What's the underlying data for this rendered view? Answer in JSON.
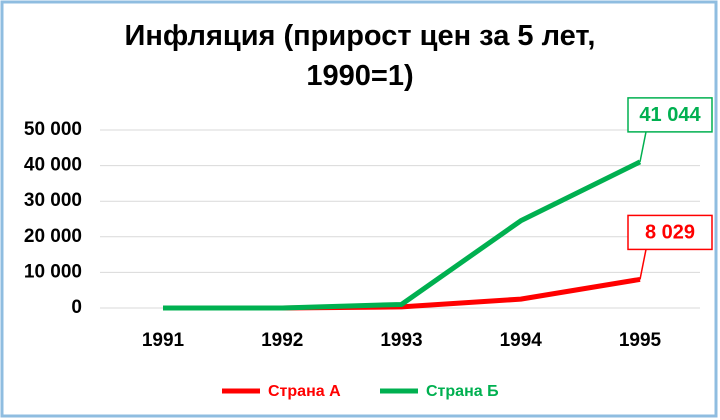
{
  "chart_data": {
    "type": "line",
    "title": "Инфляция (прирост цен за 5 лет, 1990=1)",
    "categories": [
      "1991",
      "1992",
      "1993",
      "1994",
      "1995"
    ],
    "series": [
      {
        "name": "Страна А",
        "color": "#ff0000",
        "values": [
          0,
          0,
          300,
          2500,
          8029
        ],
        "value_labels": [
          null,
          null,
          null,
          null,
          "8 029"
        ]
      },
      {
        "name": "Страна Б",
        "color": "#00b050",
        "values": [
          0,
          0,
          1000,
          24500,
          41044
        ],
        "value_labels": [
          null,
          null,
          null,
          null,
          "41 044"
        ]
      }
    ],
    "ylim": [
      0,
      50000
    ],
    "yticks": [
      0,
      {
        "value": 10000,
        "label": "10 000"
      },
      {
        "value": 20000,
        "label": "20 000"
      },
      {
        "value": 30000,
        "label": "30 000"
      },
      {
        "value": 40000,
        "label": "40 000"
      },
      {
        "value": 50000,
        "label": "50 000"
      }
    ],
    "grid": true,
    "legend": "bottom"
  }
}
